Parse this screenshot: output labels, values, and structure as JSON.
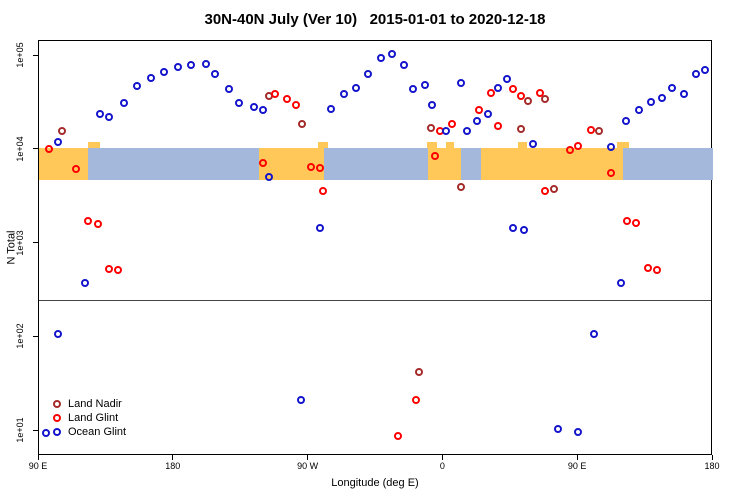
{
  "title": "30N-40N July (Ver 10)   2015-01-01 to 2020-12-18",
  "chart_data": {
    "type": "scatter",
    "title": "30N-40N July (Ver 10)  2015-01-01 to 2020-12-18",
    "xlabel": "Longitude (deg E)",
    "ylabel": "N Total",
    "x_axis": {
      "note": "position measured in degrees east of 90E, axis wraps 90E-180-90W-0-90E-180",
      "range": [
        0,
        450
      ],
      "ticks": [
        {
          "pos": 0,
          "label": "90 E"
        },
        {
          "pos": 90,
          "label": "180"
        },
        {
          "pos": 180,
          "label": "90 W"
        },
        {
          "pos": 270,
          "label": "0"
        },
        {
          "pos": 360,
          "label": "90 E"
        },
        {
          "pos": 450,
          "label": "180"
        }
      ]
    },
    "y_axis": {
      "scale": "log",
      "ticks": [
        {
          "value": 100000,
          "label": "1e+05"
        },
        {
          "value": 10000,
          "label": "1e+04"
        },
        {
          "value": 1000,
          "label": "1e+03"
        },
        {
          "value": 100,
          "label": "1e+02"
        },
        {
          "value": 10,
          "label": "1e+01"
        }
      ]
    },
    "ref_line_value": 250,
    "map_band": {
      "top_value": 10500,
      "bottom_value": 4800,
      "land_color": "#FFC859",
      "ocean_color": "#A4B8DC",
      "segments": [
        {
          "from": 0,
          "to": 33,
          "type": "land"
        },
        {
          "from": 33,
          "to": 147,
          "type": "ocean"
        },
        {
          "from": 147,
          "to": 190,
          "type": "land"
        },
        {
          "from": 190,
          "to": 260,
          "type": "ocean"
        },
        {
          "from": 260,
          "to": 282,
          "type": "land"
        },
        {
          "from": 282,
          "to": 295,
          "type": "ocean"
        },
        {
          "from": 295,
          "to": 390,
          "type": "land"
        },
        {
          "from": 390,
          "to": 450,
          "type": "ocean"
        }
      ],
      "bumps": [
        {
          "from": 33,
          "to": 41
        },
        {
          "from": 186,
          "to": 193
        },
        {
          "from": 259,
          "to": 266
        },
        {
          "from": 272,
          "to": 277
        },
        {
          "from": 320,
          "to": 326
        },
        {
          "from": 386,
          "to": 394
        }
      ]
    },
    "legend": {
      "position": "bottom-left",
      "entries": [
        "Land Nadir",
        "Land Glint",
        "Ocean Glint"
      ]
    },
    "series": [
      {
        "name": "Land Nadir",
        "color": "#A52A2A",
        "points": [
          [
            16,
            15500
          ],
          [
            154,
            37000
          ],
          [
            176,
            18400
          ],
          [
            262,
            17000
          ],
          [
            282,
            4000
          ],
          [
            322,
            16600
          ],
          [
            327,
            33000
          ],
          [
            338,
            34700
          ],
          [
            344,
            3800
          ],
          [
            374,
            15500
          ],
          [
            254,
            42
          ]
        ]
      },
      {
        "name": "Land Glint",
        "color": "#FF0000",
        "points": [
          [
            7,
            10000
          ],
          [
            25,
            6200
          ],
          [
            33,
            1700
          ],
          [
            40,
            1600
          ],
          [
            47,
            530
          ],
          [
            53,
            510
          ],
          [
            150,
            7200
          ],
          [
            158,
            39000
          ],
          [
            166,
            34000
          ],
          [
            172,
            30000
          ],
          [
            182,
            6400
          ],
          [
            188,
            6300
          ],
          [
            190,
            3600
          ],
          [
            265,
            8500
          ],
          [
            268,
            15800
          ],
          [
            276,
            18400
          ],
          [
            294,
            26000
          ],
          [
            302,
            40000
          ],
          [
            307,
            17600
          ],
          [
            317,
            44000
          ],
          [
            322,
            37000
          ],
          [
            335,
            40000
          ],
          [
            338,
            3600
          ],
          [
            355,
            9700
          ],
          [
            360,
            10700
          ],
          [
            369,
            16200
          ],
          [
            382,
            5600
          ],
          [
            393,
            1700
          ],
          [
            399,
            1620
          ],
          [
            407,
            540
          ],
          [
            413,
            510
          ],
          [
            252,
            21
          ],
          [
            240,
            8.8
          ]
        ]
      },
      {
        "name": "Ocean Glint",
        "color": "#1414CC",
        "points": [
          [
            13,
            12000
          ],
          [
            41,
            24000
          ],
          [
            47,
            22000
          ],
          [
            57,
            31000
          ],
          [
            66,
            47000
          ],
          [
            75,
            57000
          ],
          [
            84,
            66000
          ],
          [
            93,
            76000
          ],
          [
            102,
            80000
          ],
          [
            112,
            81000
          ],
          [
            118,
            63000
          ],
          [
            127,
            44000
          ],
          [
            134,
            31000
          ],
          [
            144,
            28000
          ],
          [
            150,
            26000
          ],
          [
            154,
            5000
          ],
          [
            195,
            27000
          ],
          [
            204,
            39000
          ],
          [
            212,
            45000
          ],
          [
            220,
            63000
          ],
          [
            229,
            93000
          ],
          [
            236,
            103000
          ],
          [
            244,
            80000
          ],
          [
            250,
            44000
          ],
          [
            258,
            49000
          ],
          [
            263,
            30000
          ],
          [
            272,
            15500
          ],
          [
            282,
            51000
          ],
          [
            286,
            15500
          ],
          [
            293,
            20000
          ],
          [
            300,
            23500
          ],
          [
            307,
            45000
          ],
          [
            313,
            56000
          ],
          [
            330,
            11500
          ],
          [
            382,
            10500
          ],
          [
            392,
            20000
          ],
          [
            401,
            26000
          ],
          [
            409,
            32000
          ],
          [
            416,
            35000
          ],
          [
            423,
            45000
          ],
          [
            431,
            39000
          ],
          [
            439,
            63000
          ],
          [
            445,
            70000
          ],
          [
            13,
            106
          ],
          [
            371,
            106
          ],
          [
            31,
            370
          ],
          [
            389,
            370
          ],
          [
            188,
            1460
          ],
          [
            317,
            1460
          ],
          [
            324,
            1360
          ],
          [
            175,
            21
          ],
          [
            347,
            10.5
          ],
          [
            360,
            9.6
          ],
          [
            5,
            9.4
          ]
        ]
      }
    ]
  }
}
